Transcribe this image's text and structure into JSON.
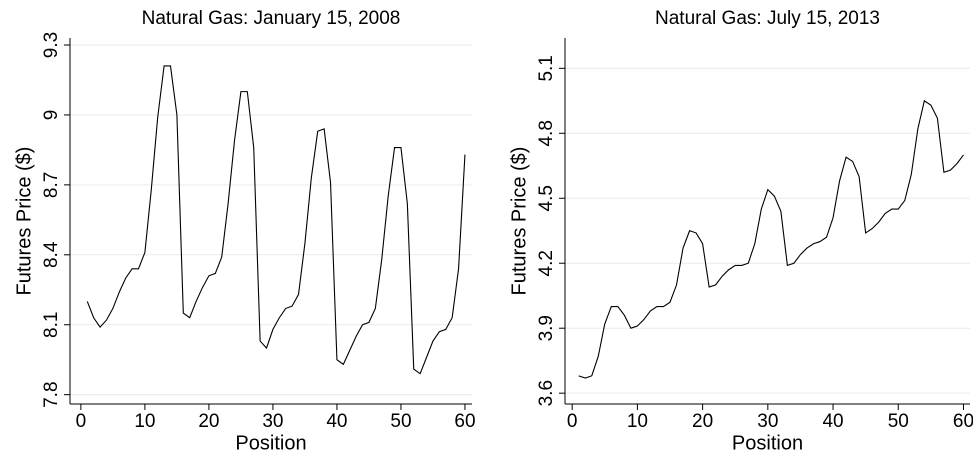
{
  "chart_data": [
    {
      "type": "line",
      "title": "Natural Gas: January 15, 2008",
      "xlabel": "Position",
      "ylabel": "Futures Price ($)",
      "x": [
        1,
        2,
        3,
        4,
        5,
        6,
        7,
        8,
        9,
        10,
        11,
        12,
        13,
        14,
        15,
        16,
        17,
        18,
        19,
        20,
        21,
        22,
        23,
        24,
        25,
        26,
        27,
        28,
        29,
        30,
        31,
        32,
        33,
        34,
        35,
        36,
        37,
        38,
        39,
        40,
        41,
        42,
        43,
        44,
        45,
        46,
        47,
        48,
        49,
        50,
        51,
        52,
        53,
        54,
        55,
        56,
        57,
        58,
        59,
        60
      ],
      "series": [
        {
          "name": "Natural Gas",
          "color": "#000000",
          "values": [
            8.2,
            8.13,
            8.09,
            8.12,
            8.17,
            8.24,
            8.3,
            8.34,
            8.34,
            8.41,
            8.68,
            8.99,
            9.21,
            9.21,
            9.0,
            8.15,
            8.13,
            8.2,
            8.26,
            8.31,
            8.32,
            8.39,
            8.62,
            8.89,
            9.1,
            9.1,
            8.86,
            8.03,
            8.0,
            8.08,
            8.13,
            8.17,
            8.18,
            8.23,
            8.45,
            8.73,
            8.93,
            8.94,
            8.71,
            7.95,
            7.93,
            7.99,
            8.05,
            8.1,
            8.11,
            8.17,
            8.38,
            8.65,
            8.86,
            8.86,
            8.62,
            7.91,
            7.89,
            7.96,
            8.03,
            8.07,
            8.08,
            8.13,
            8.34,
            8.83
          ]
        }
      ],
      "xlim": [
        -1.7,
        61.1
      ],
      "xticks": [
        0,
        10,
        20,
        30,
        40,
        50,
        60
      ],
      "ylim": [
        7.76,
        9.33
      ],
      "yticks": [
        7.8,
        8.1,
        8.4,
        8.7,
        9,
        9.3
      ],
      "grid": true
    },
    {
      "type": "line",
      "title": "Natural Gas: July 15, 2013",
      "xlabel": "Position",
      "ylabel": "Futures Price ($)",
      "x": [
        1,
        2,
        3,
        4,
        5,
        6,
        7,
        8,
        9,
        10,
        11,
        12,
        13,
        14,
        15,
        16,
        17,
        18,
        19,
        20,
        21,
        22,
        23,
        24,
        25,
        26,
        27,
        28,
        29,
        30,
        31,
        32,
        33,
        34,
        35,
        36,
        37,
        38,
        39,
        40,
        41,
        42,
        43,
        44,
        45,
        46,
        47,
        48,
        49,
        50,
        51,
        52,
        53,
        54,
        55,
        56,
        57,
        58,
        59,
        60
      ],
      "series": [
        {
          "name": "Natural Gas",
          "color": "#000000",
          "values": [
            3.68,
            3.67,
            3.68,
            3.77,
            3.92,
            4.0,
            4.0,
            3.96,
            3.9,
            3.91,
            3.94,
            3.98,
            4.0,
            4.0,
            4.02,
            4.1,
            4.27,
            4.35,
            4.34,
            4.29,
            4.09,
            4.1,
            4.14,
            4.17,
            4.19,
            4.19,
            4.2,
            4.29,
            4.45,
            4.54,
            4.51,
            4.44,
            4.19,
            4.2,
            4.24,
            4.27,
            4.29,
            4.3,
            4.32,
            4.41,
            4.58,
            4.69,
            4.67,
            4.6,
            4.34,
            4.36,
            4.39,
            4.43,
            4.45,
            4.45,
            4.49,
            4.61,
            4.82,
            4.95,
            4.93,
            4.87,
            4.62,
            4.63,
            4.66,
            4.7
          ]
        }
      ],
      "xlim": [
        -1.1,
        61
      ],
      "xticks": [
        0,
        10,
        20,
        30,
        40,
        50,
        60
      ],
      "ylim": [
        3.55,
        5.24
      ],
      "yticks": [
        3.6,
        3.9,
        4.2,
        4.5,
        4.8,
        5.1
      ],
      "grid": true
    }
  ]
}
